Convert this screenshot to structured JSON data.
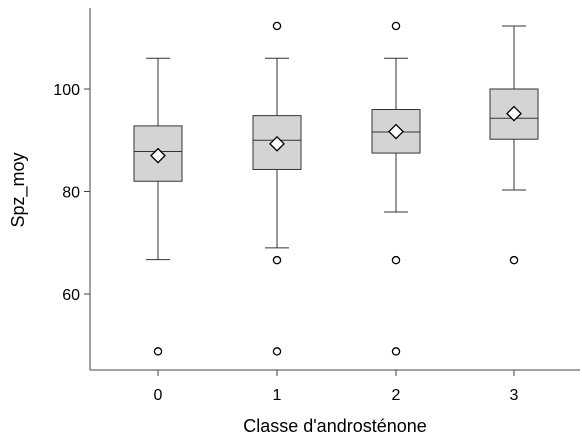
{
  "chart_data": {
    "type": "boxplot",
    "xlabel": "Classe d'androsténone",
    "ylabel": "Spz_moy",
    "ylim": [
      45,
      117
    ],
    "yticks": [
      60,
      80,
      100
    ],
    "categories": [
      "0",
      "1",
      "2",
      "3"
    ],
    "boxes": [
      {
        "category": "0",
        "whisker_low": 66.7,
        "q1": 82.0,
        "median": 87.8,
        "q3": 92.8,
        "whisker_high": 106.0,
        "mean": 87.0,
        "outliers": [
          48.8
        ]
      },
      {
        "category": "1",
        "whisker_low": 69.0,
        "q1": 84.3,
        "median": 90.0,
        "q3": 94.8,
        "whisker_high": 106.0,
        "mean": 89.3,
        "outliers": [
          112.3,
          66.6,
          48.8
        ]
      },
      {
        "category": "2",
        "whisker_low": 76.0,
        "q1": 87.5,
        "median": 91.6,
        "q3": 96.0,
        "whisker_high": 106.0,
        "mean": 91.7,
        "outliers": [
          112.3,
          66.6,
          48.8
        ]
      },
      {
        "category": "3",
        "whisker_low": 80.3,
        "q1": 90.2,
        "median": 94.3,
        "q3": 100.0,
        "whisker_high": 112.3,
        "mean": 95.2,
        "outliers": [
          66.6
        ]
      }
    ],
    "colors": {
      "box_fill": "#d4d4d4",
      "stroke": "#333333"
    },
    "grid": false,
    "legend": "none"
  }
}
